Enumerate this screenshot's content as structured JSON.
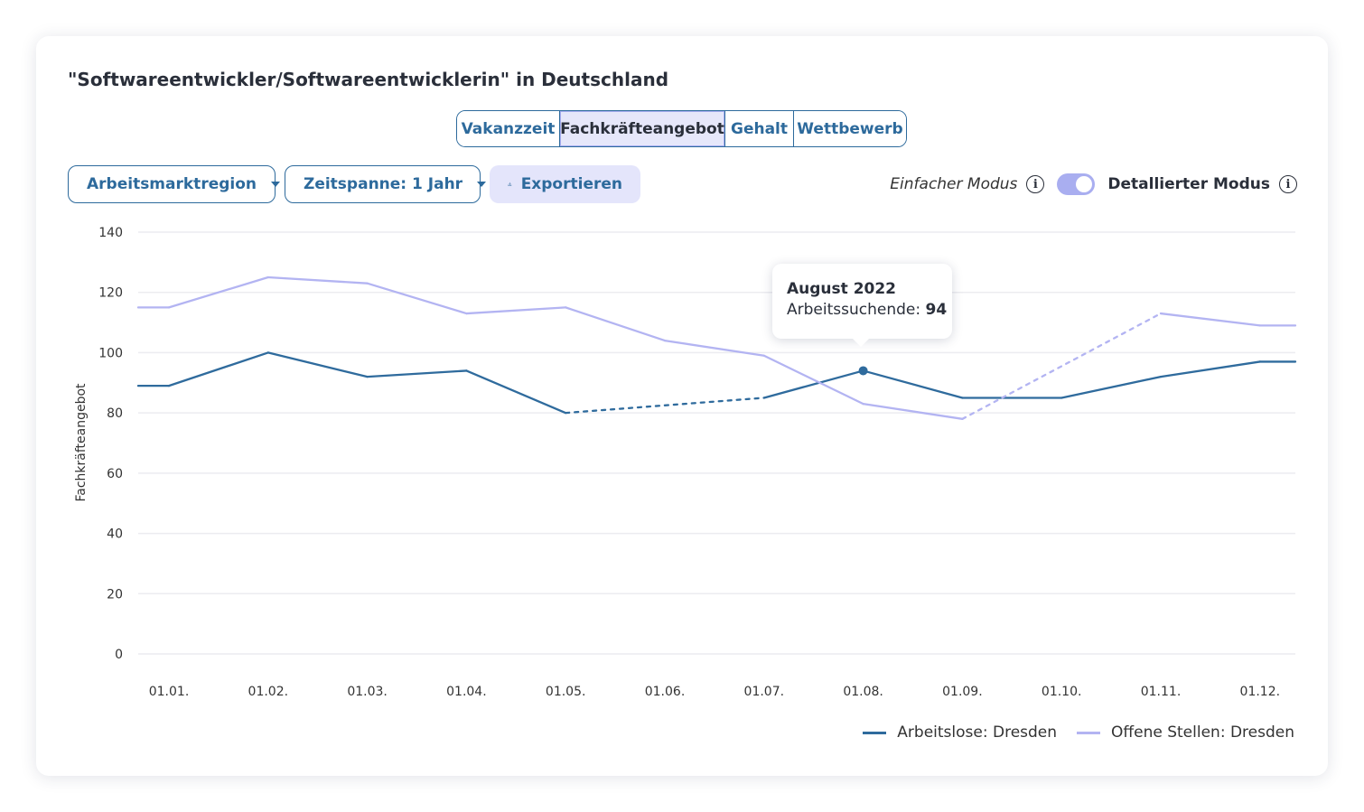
{
  "title": "\"Softwareentwickler/Softwareentwicklerin\" in Deutschland",
  "tabs": [
    "Vakanzzeit",
    "Fachkräfteangebot",
    "Gehalt",
    "Wettbewerb"
  ],
  "active_tab": "Fachkräfteangebot",
  "controls": {
    "region_label": "Arbeitsmarktregion",
    "period_label": "Zeitspanne: 1 Jahr",
    "export_label": "Exportieren",
    "simple_mode": "Einfacher Modus",
    "detailed_mode": "Detallierter Modus",
    "detailed_mode_active": true
  },
  "tooltip": {
    "title": "August 2022",
    "label": "Arbeitssuchende:",
    "value": "94"
  },
  "colors": {
    "primary": "#2d6a9c",
    "series1": "#2f6b9d",
    "series2": "#b3b4f2",
    "active_tab_bg": "#e6e7fa"
  },
  "chart_data": {
    "type": "line",
    "title": "",
    "xlabel": "",
    "ylabel": "Fachkräfteangebot",
    "ylim": [
      0,
      140
    ],
    "yticks": [
      0,
      20,
      40,
      60,
      80,
      100,
      120,
      140
    ],
    "categories": [
      "01.01.",
      "01.02.",
      "01.03.",
      "01.04.",
      "01.05.",
      "01.06.",
      "01.07.",
      "01.08.",
      "01.09.",
      "01.10.",
      "01.11.",
      "01.12."
    ],
    "grid": true,
    "legend_position": "bottom-right",
    "series": [
      {
        "name": "Arbeitslose: Dresden",
        "x": [
          "01.01.",
          "01.01.",
          "01.02.",
          "01.03.",
          "01.04.",
          "01.05.",
          "01.07.",
          "01.08.",
          "01.09.",
          "01.10.",
          "01.11.",
          "01.12.",
          "01.12."
        ],
        "values": [
          89,
          89,
          100,
          92,
          94,
          80,
          85,
          94,
          85,
          85,
          92,
          97,
          97
        ],
        "dashed_segments": [
          [
            5,
            6
          ]
        ],
        "highlight_index": 7
      },
      {
        "name": "Offene Stellen: Dresden",
        "x": [
          "01.01.",
          "01.01.",
          "01.02.",
          "01.03.",
          "01.04.",
          "01.05.",
          "01.06.",
          "01.07.",
          "01.08.",
          "01.09.",
          "01.11.",
          "01.12.",
          "01.12."
        ],
        "values": [
          115,
          115,
          125,
          123,
          113,
          115,
          104,
          99,
          83,
          78,
          113,
          109,
          109
        ],
        "dashed_segments": [
          [
            9,
            10
          ]
        ]
      }
    ]
  }
}
